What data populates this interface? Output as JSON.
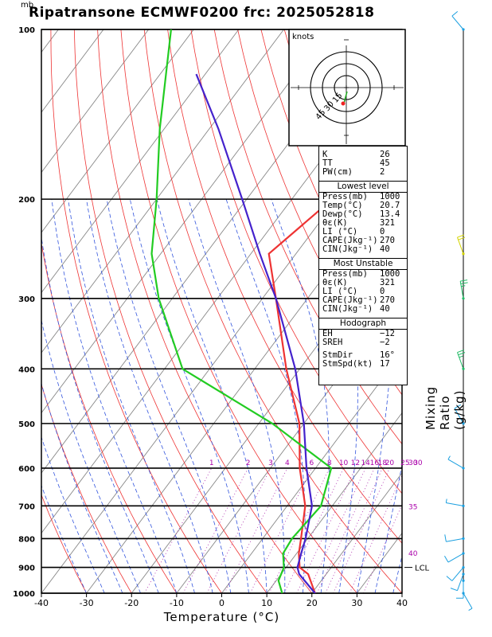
{
  "header": {
    "title": "Ripatransone ECMWF0200 frc: 2025052818",
    "unit_mb": "mb"
  },
  "labels": {
    "xlabel": "Temperature (°C)",
    "mixing_ratio": "Mixing Ratio (g/kg)",
    "knots": "knots",
    "lcl": "LCL"
  },
  "chart_data": {
    "type": "line",
    "title": "Ripatransone ECMWF0200 frc: 2025052818",
    "xlabel": "Temperature (°C)",
    "ylabel": "mb",
    "xlim": [
      -40,
      40
    ],
    "ylim": [
      1000,
      100
    ],
    "y_scale": "log",
    "x_ticks": [
      "-40",
      "-30",
      "-20",
      "-10",
      "0",
      "10",
      "20",
      "30",
      "40"
    ],
    "pressure_levels": [
      "100",
      "200",
      "300",
      "400",
      "500",
      "600",
      "700",
      "800",
      "900",
      "1000"
    ],
    "mixing_ratio_labels": [
      "1",
      "2",
      "3",
      "4",
      "6",
      "8",
      "10",
      "12",
      "14",
      "16",
      "18",
      "20",
      "25",
      "30"
    ],
    "theta_labels": [
      "30",
      "35",
      "40"
    ],
    "series": [
      {
        "role": "temperature",
        "color": "#ee3333",
        "points": [
          [
            1000,
            20.7
          ],
          [
            925,
            16
          ],
          [
            900,
            13
          ],
          [
            850,
            10.5
          ],
          [
            800,
            8.5
          ],
          [
            700,
            4
          ],
          [
            600,
            -3.5
          ],
          [
            500,
            -11
          ],
          [
            400,
            -23
          ],
          [
            300,
            -37
          ],
          [
            250,
            -46
          ],
          [
            200,
            -41
          ],
          [
            150,
            -32
          ],
          [
            100,
            -18
          ]
        ]
      },
      {
        "role": "dewpoint",
        "color": "#22cc22",
        "points": [
          [
            1000,
            13.4
          ],
          [
            950,
            10.5
          ],
          [
            900,
            9.5
          ],
          [
            850,
            7
          ],
          [
            800,
            6.5
          ],
          [
            700,
            7.5
          ],
          [
            600,
            3.5
          ],
          [
            500,
            -17
          ],
          [
            400,
            -46
          ],
          [
            300,
            -63
          ],
          [
            250,
            -72
          ],
          [
            200,
            -80
          ],
          [
            150,
            -91
          ],
          [
            100,
            -105
          ]
        ]
      },
      {
        "role": "parcel",
        "color": "#4422cc",
        "points": [
          [
            1000,
            20.7
          ],
          [
            925,
            14
          ],
          [
            900,
            12.5
          ],
          [
            850,
            11
          ],
          [
            800,
            9.5
          ],
          [
            700,
            5.5
          ],
          [
            600,
            -2
          ],
          [
            500,
            -10
          ],
          [
            400,
            -21
          ],
          [
            300,
            -37
          ],
          [
            250,
            -48
          ],
          [
            200,
            -61
          ],
          [
            150,
            -78
          ],
          [
            120,
            -92
          ]
        ]
      }
    ],
    "wind_barbs": [
      {
        "pressure": 1000,
        "dir": 150,
        "speed": 5
      },
      {
        "pressure": 950,
        "dir": 180,
        "speed": 10
      },
      {
        "pressure": 925,
        "dir": 200,
        "speed": 10
      },
      {
        "pressure": 900,
        "dir": 220,
        "speed": 10
      },
      {
        "pressure": 850,
        "dir": 240,
        "speed": 10
      },
      {
        "pressure": 800,
        "dir": 260,
        "speed": 10
      },
      {
        "pressure": 700,
        "dir": 280,
        "speed": 5
      },
      {
        "pressure": 600,
        "dir": 300,
        "speed": 5
      },
      {
        "pressure": 500,
        "dir": 330,
        "speed": 10
      },
      {
        "pressure": 400,
        "dir": 340,
        "speed": 25
      },
      {
        "pressure": 300,
        "dir": 350,
        "speed": 25
      },
      {
        "pressure": 250,
        "dir": 340,
        "speed": 20
      },
      {
        "pressure": 100,
        "dir": 320,
        "speed": 10
      }
    ],
    "hodograph": {
      "rings": [
        "15",
        "30",
        "45"
      ],
      "storm_dir": 16,
      "storm_speed": 17
    },
    "lcl_pressure": 900
  },
  "indices": [
    {
      "label": "K",
      "value": "26"
    },
    {
      "label": "TT",
      "value": "45"
    },
    {
      "label": "PW(cm)",
      "value": "2"
    }
  ],
  "lowest_level": {
    "title": "Lowest level",
    "rows": [
      {
        "label": "Press(mb)",
        "value": "1000"
      },
      {
        "label": "Temp(°C)",
        "value": "20.7"
      },
      {
        "label": "Dewp(°C)",
        "value": "13.4"
      },
      {
        "label": "θε(K)",
        "value": "321"
      },
      {
        "label": "LI (°C)",
        "value": "0"
      },
      {
        "label": "CAPE(Jkg⁻¹)",
        "value": "270"
      },
      {
        "label": "CIN(Jkg⁻¹)",
        "value": "40"
      }
    ]
  },
  "most_unstable": {
    "title": "Most Unstable",
    "rows": [
      {
        "label": "Press(mb)",
        "value": "1000"
      },
      {
        "label": "θε(K)",
        "value": "321"
      },
      {
        "label": "LI (°C)",
        "value": "0"
      },
      {
        "label": "CAPE(Jkg⁻¹)",
        "value": "270"
      },
      {
        "label": "CIN(Jkg⁻¹)",
        "value": "40"
      }
    ]
  },
  "hodograph_box": {
    "title": "Hodograph",
    "rows": [
      {
        "label": "EH",
        "value": "−12"
      },
      {
        "label": "SREH",
        "value": "−2"
      },
      {
        "label": "StmDir",
        "value": "16°"
      },
      {
        "label": "StmSpd(kt)",
        "value": "17"
      }
    ]
  }
}
